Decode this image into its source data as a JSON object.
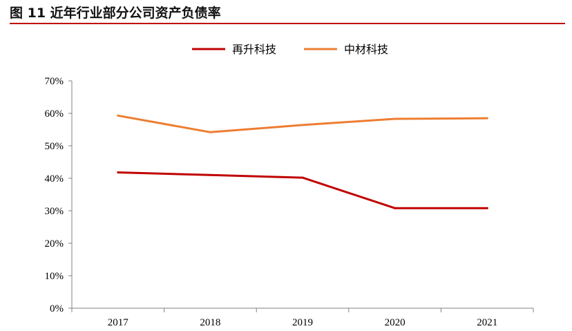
{
  "title": "图 11 近年行业部分公司资产负债率",
  "chart_data": {
    "type": "line",
    "title": "",
    "xlabel": "",
    "ylabel": "",
    "categories": [
      "2017",
      "2018",
      "2019",
      "2020",
      "2021"
    ],
    "ylim": [
      0,
      70
    ],
    "yticks": [
      0,
      10,
      20,
      30,
      40,
      50,
      60,
      70
    ],
    "ytick_labels": [
      "0%",
      "10%",
      "20%",
      "30%",
      "40%",
      "50%",
      "60%",
      "70%"
    ],
    "grid": false,
    "legend_position": "top-center",
    "series": [
      {
        "name": "再升科技",
        "color": "#c00000",
        "values": [
          41.8,
          41.0,
          40.2,
          30.8,
          30.8
        ]
      },
      {
        "name": "中材科技",
        "color": "#ed7d31",
        "values": [
          59.3,
          54.2,
          56.4,
          58.3,
          58.5
        ]
      }
    ]
  }
}
